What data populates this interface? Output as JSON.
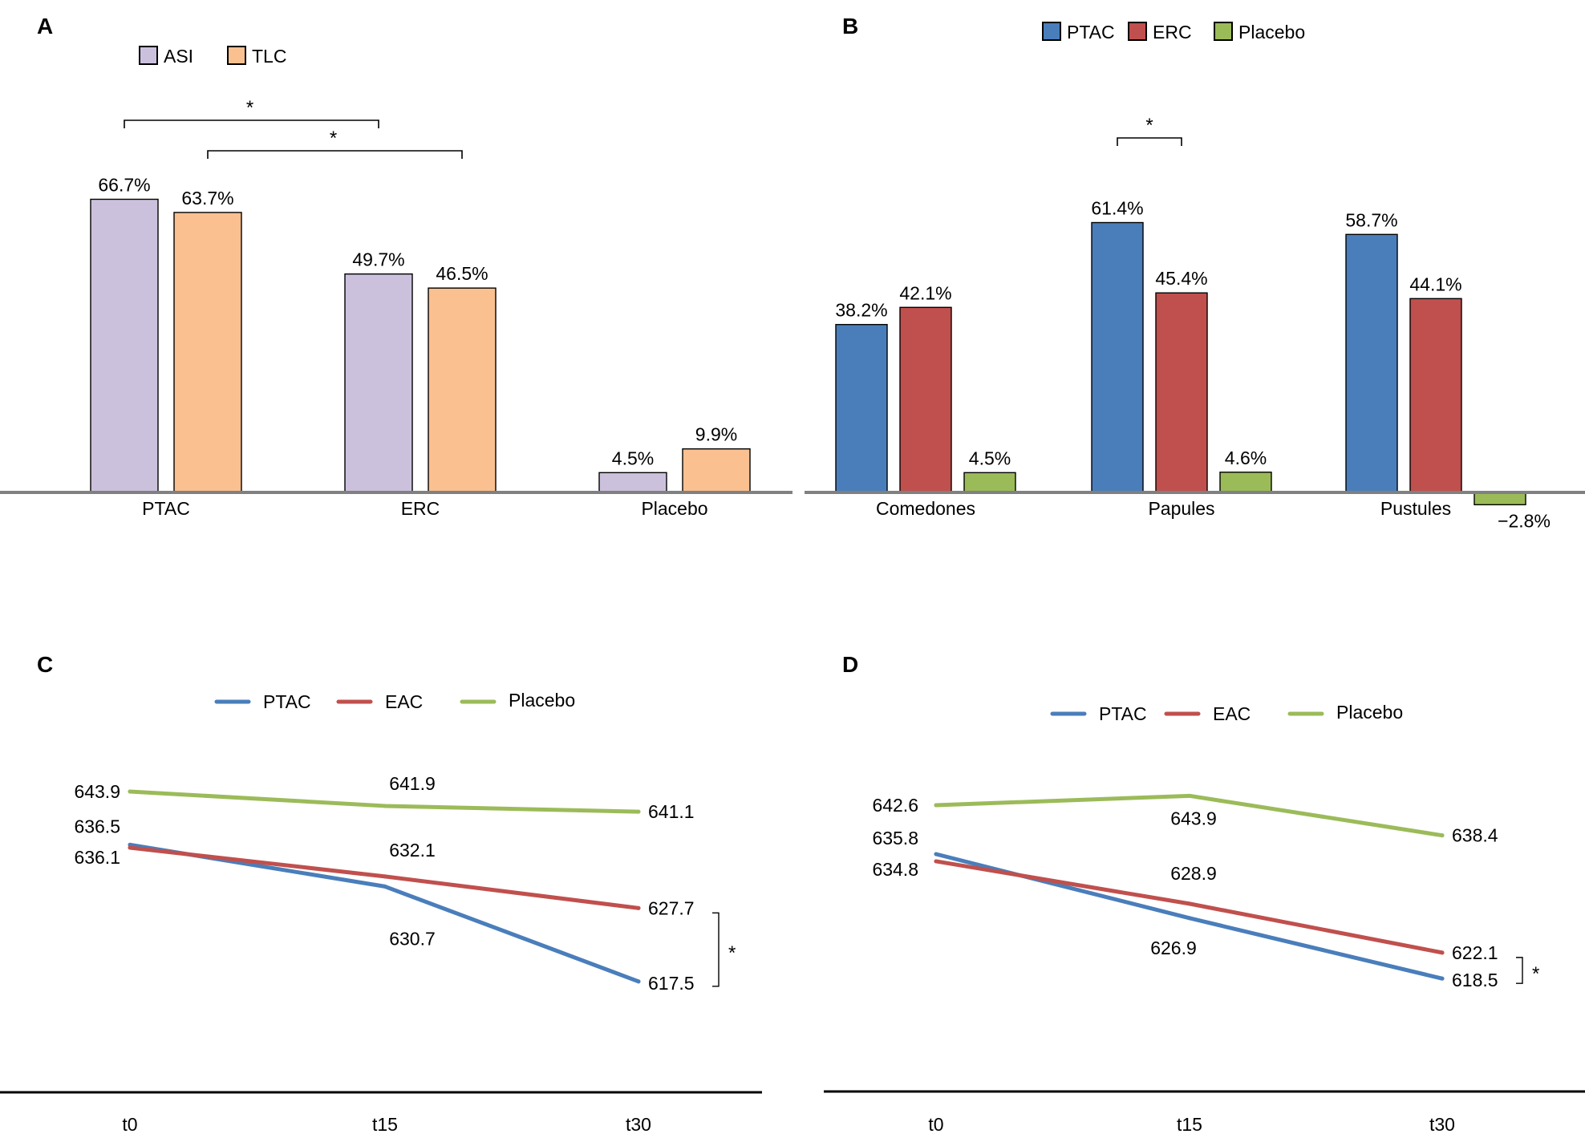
{
  "chart_data": [
    {
      "panel": "A",
      "type": "bar",
      "categories": [
        "PTAC",
        "ERC",
        "Placebo"
      ],
      "series": [
        {
          "name": "ASI",
          "color": "#ccc1dd",
          "values": [
            66.7,
            49.7,
            4.5
          ],
          "labels": [
            "66.7%",
            "49.7%",
            "4.5%"
          ]
        },
        {
          "name": "TLC",
          "color": "#fac090",
          "values": [
            63.7,
            46.5,
            9.9
          ],
          "labels": [
            "63.7%",
            "46.5%",
            "9.9%"
          ]
        }
      ],
      "ylim": [
        0,
        75
      ],
      "grid": false,
      "legend_position": "top-center",
      "significance": [
        {
          "from": "PTAC ASI",
          "to": "ERC ASI",
          "label": "*"
        },
        {
          "from": "PTAC TLC",
          "to": "ERC TLC",
          "label": "*"
        }
      ]
    },
    {
      "panel": "B",
      "type": "bar",
      "categories": [
        "Comedones",
        "Papules",
        "Pustules"
      ],
      "series": [
        {
          "name": "PTAC",
          "color": "#4a7ebb",
          "values": [
            38.2,
            61.4,
            58.7
          ],
          "labels": [
            "38.2%",
            "61.4%",
            "58.7%"
          ]
        },
        {
          "name": "ERC",
          "color": "#c0504d",
          "values": [
            42.1,
            45.4,
            44.1
          ],
          "labels": [
            "42.1%",
            "45.4%",
            "44.1%"
          ]
        },
        {
          "name": "Placebo",
          "color": "#9bbb59",
          "values": [
            4.5,
            4.6,
            -2.8
          ],
          "labels": [
            "4.5%",
            "4.6%",
            "−2.8%"
          ]
        }
      ],
      "ylim": [
        -5,
        70
      ],
      "grid": false,
      "legend_position": "top-center",
      "significance": [
        {
          "from": "Papules PTAC",
          "to": "Papules ERC",
          "label": "*"
        }
      ]
    },
    {
      "panel": "C",
      "type": "line",
      "x": [
        "t0",
        "t15",
        "t30"
      ],
      "series": [
        {
          "name": "PTAC",
          "color": "#4a7ebb",
          "values": [
            636.5,
            630.7,
            617.5
          ],
          "labels": [
            "636.5",
            "630.7",
            "617.5"
          ]
        },
        {
          "name": "EAC",
          "color": "#c0504d",
          "values": [
            636.1,
            632.1,
            627.7
          ],
          "labels": [
            "636.1",
            "632.1",
            "627.7"
          ]
        },
        {
          "name": "Placebo",
          "color": "#9bbb59",
          "values": [
            643.9,
            641.9,
            641.1
          ],
          "labels": [
            "643.9",
            "641.9",
            "641.1"
          ]
        }
      ],
      "grid": false,
      "legend_position": "top-center",
      "significance": [
        {
          "from": "PTAC t30",
          "to": "EAC t30",
          "label": "*"
        }
      ]
    },
    {
      "panel": "D",
      "type": "line",
      "x": [
        "t0",
        "t15",
        "t30"
      ],
      "series": [
        {
          "name": "PTAC",
          "color": "#4a7ebb",
          "values": [
            635.8,
            626.9,
            618.5
          ],
          "labels": [
            "635.8",
            "626.9",
            "618.5"
          ]
        },
        {
          "name": "EAC",
          "color": "#c0504d",
          "values": [
            634.8,
            628.9,
            622.1
          ],
          "labels": [
            "634.8",
            "628.9",
            "622.1"
          ]
        },
        {
          "name": "Placebo",
          "color": "#9bbb59",
          "values": [
            642.6,
            643.9,
            638.4
          ],
          "labels": [
            "642.6",
            "643.9",
            "638.4"
          ]
        }
      ],
      "grid": false,
      "legend_position": "top-center",
      "significance": [
        {
          "from": "PTAC t30",
          "to": "EAC t30",
          "label": "*"
        }
      ]
    }
  ]
}
